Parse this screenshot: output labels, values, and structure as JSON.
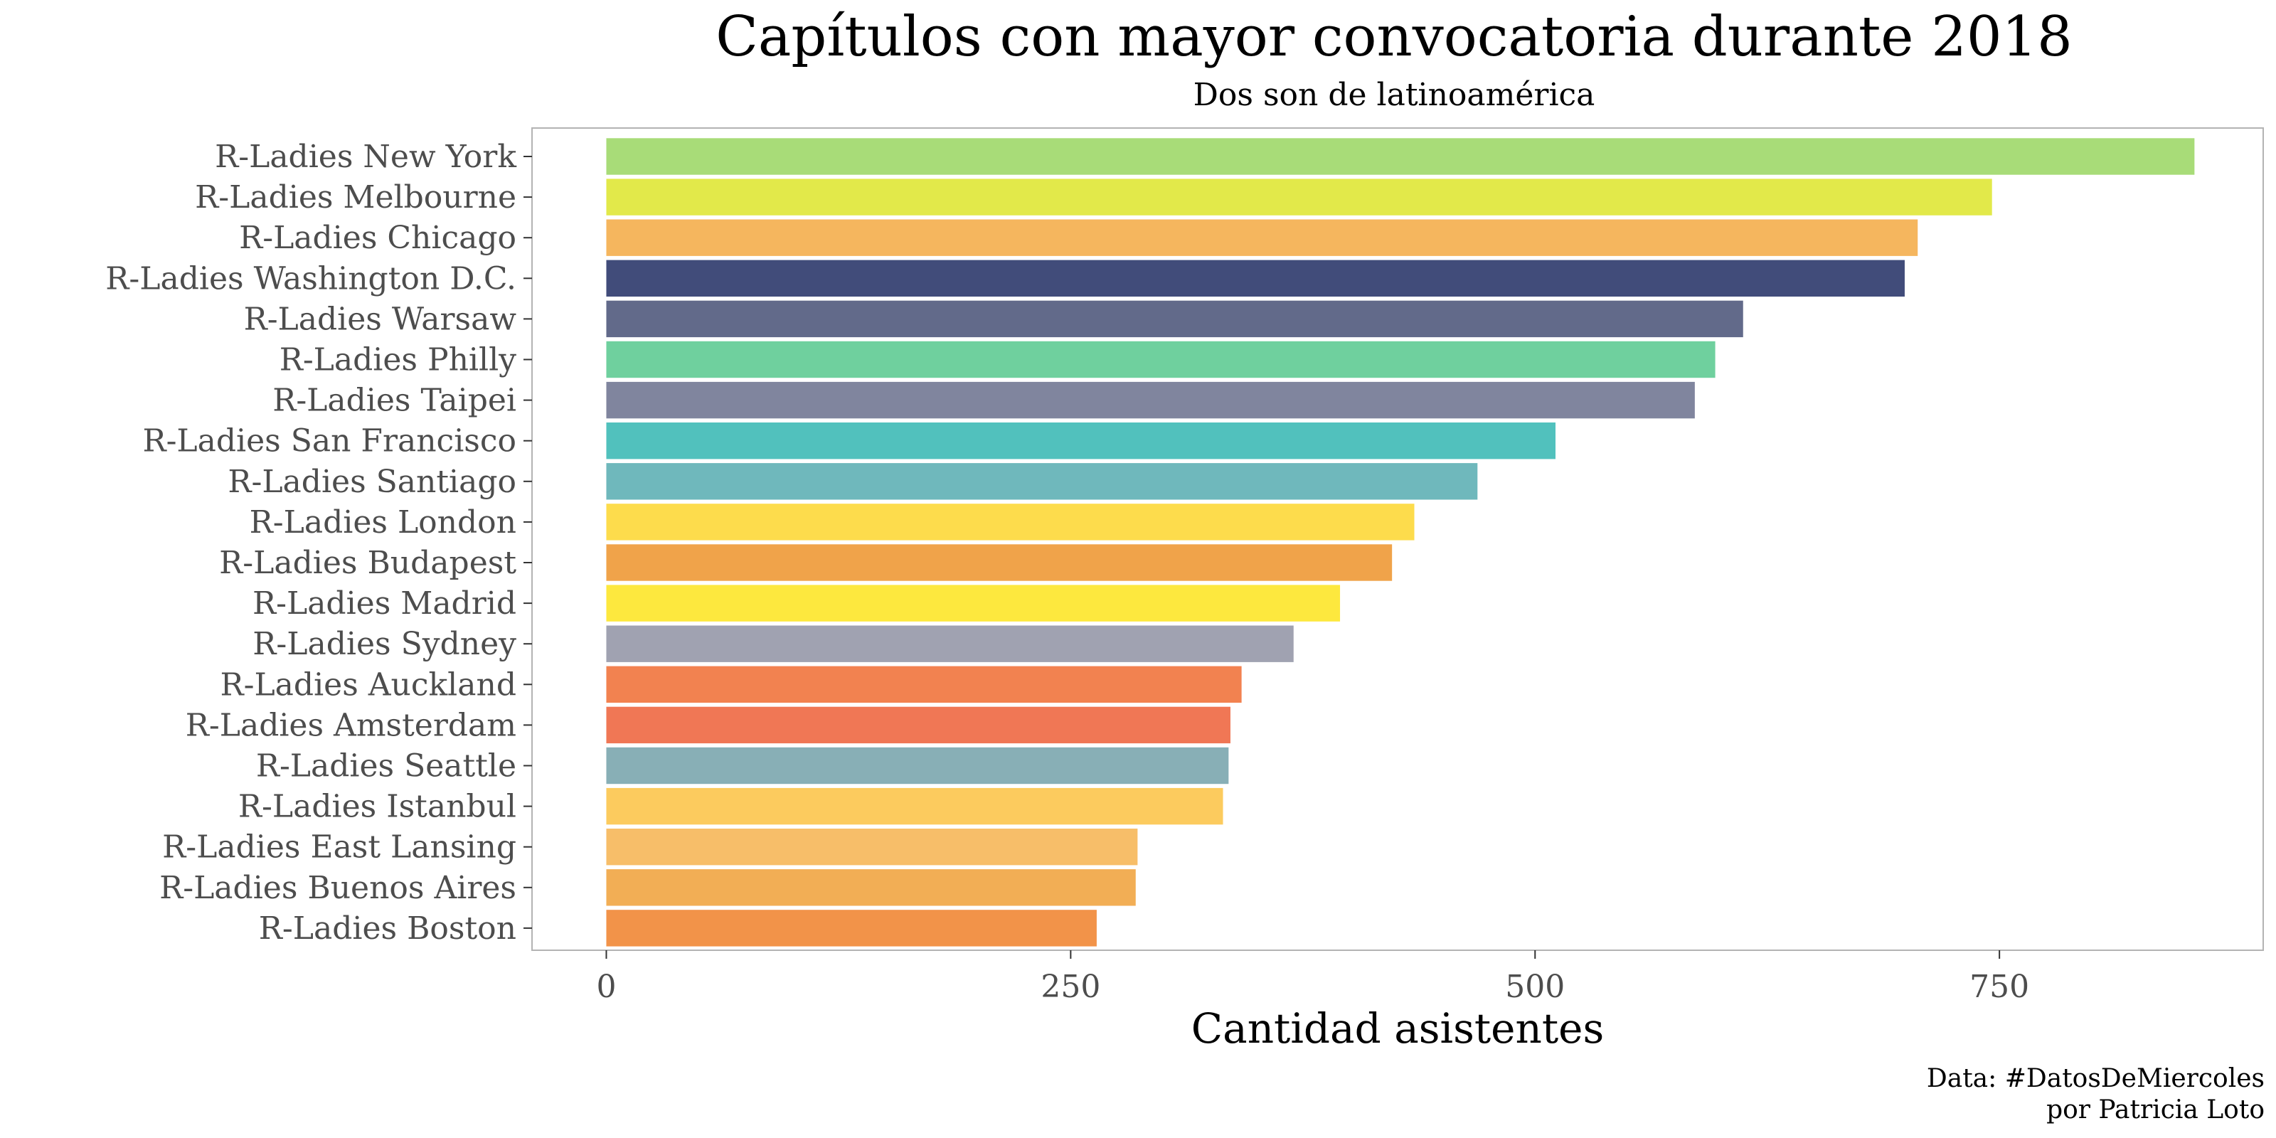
{
  "chart_data": {
    "type": "bar",
    "orientation": "horizontal",
    "title": "Capítulos con mayor convocatoria durante 2018",
    "subtitle": "Dos son de latinoamérica",
    "xlabel": "Cantidad asistentes",
    "ylabel": "",
    "caption": [
      "Data: #DatosDeMiercoles",
      "por Patricia Loto"
    ],
    "xlim": [
      -40,
      892
    ],
    "xticks": [
      0,
      250,
      500,
      750
    ],
    "xtick_labels": [
      "0",
      "250",
      "500",
      "750"
    ],
    "grid": false,
    "legend": "none",
    "categories": [
      "R-Ladies New York",
      "R-Ladies Melbourne",
      "R-Ladies Chicago",
      "R-Ladies Washington D.C.",
      "R-Ladies Warsaw",
      "R-Ladies Philly",
      "R-Ladies Taipei",
      "R-Ladies San Francisco",
      "R-Ladies Santiago",
      "R-Ladies London",
      "R-Ladies Budapest",
      "R-Ladies Madrid",
      "R-Ladies Sydney",
      "R-Ladies Auckland",
      "R-Ladies Amsterdam",
      "R-Ladies Seattle",
      "R-Ladies Istanbul",
      "R-Ladies East Lansing",
      "R-Ladies Buenos Aires",
      "R-Ladies Boston"
    ],
    "values": [
      855,
      746,
      706,
      699,
      612,
      597,
      586,
      511,
      469,
      435,
      423,
      395,
      370,
      342,
      336,
      335,
      332,
      286,
      285,
      264
    ],
    "colors": [
      "#a8dc78",
      "#e2e94a",
      "#f5b65e",
      "#414c7a",
      "#626a8a",
      "#6fd09e",
      "#80859e",
      "#51c1bd",
      "#6fb8bc",
      "#fddc4c",
      "#f0a34a",
      "#fde83e",
      "#a0a2b1",
      "#f28250",
      "#f07755",
      "#88afb6",
      "#fccb5e",
      "#f7be69",
      "#f2ae55",
      "#f29349"
    ]
  }
}
